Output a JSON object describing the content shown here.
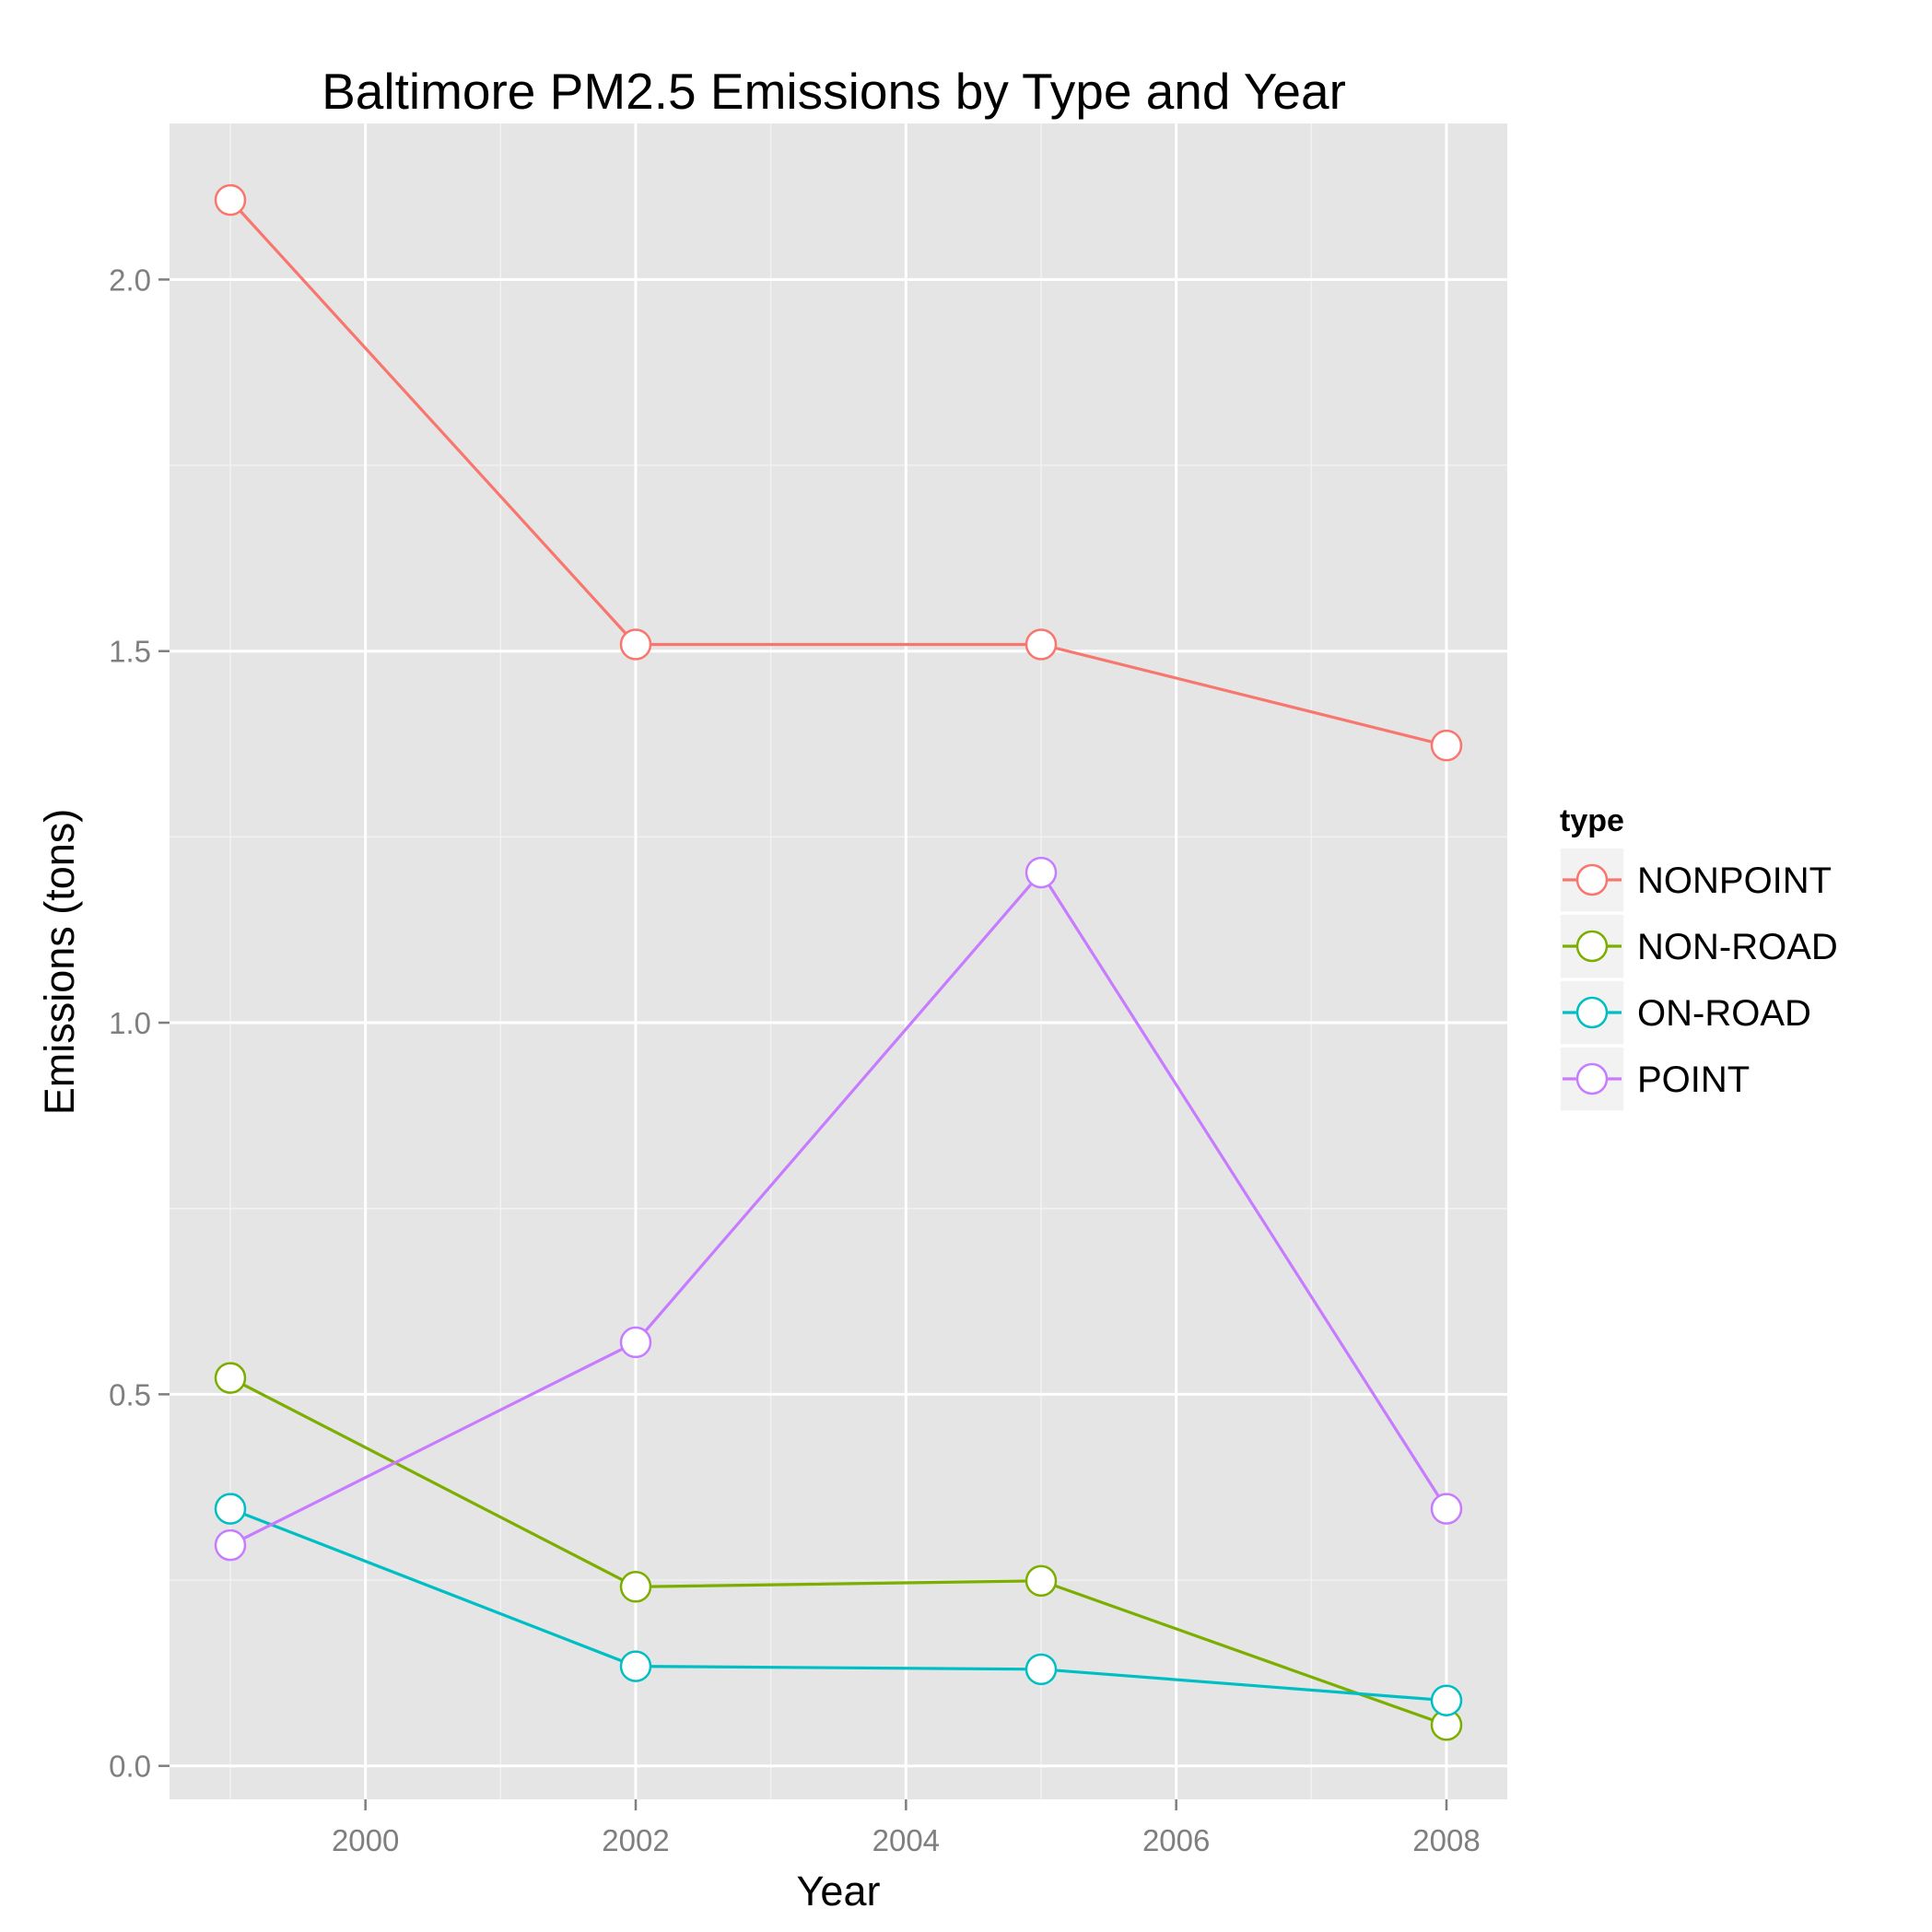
{
  "chart_data": {
    "type": "line",
    "title": "Baltimore PM2.5 Emissions by Type and Year",
    "xlabel": "Year",
    "ylabel": "Emissions (tons)",
    "xlim": [
      1998.55,
      2008.45
    ],
    "ylim": [
      -0.045,
      2.21
    ],
    "x_ticks": [
      2000,
      2002,
      2004,
      2006,
      2008
    ],
    "x_tick_labels": [
      "2000",
      "2002",
      "2004",
      "2006",
      "2008"
    ],
    "y_ticks": [
      0.0,
      0.5,
      1.0,
      1.5,
      2.0
    ],
    "y_tick_labels": [
      "0.0",
      "0.5",
      "1.0",
      "1.5",
      "2.0"
    ],
    "grid": true,
    "legend": {
      "title": "type",
      "position": "right"
    },
    "x": [
      1999,
      2002,
      2005,
      2008
    ],
    "series": [
      {
        "name": "NONPOINT",
        "color": "#F8766D",
        "values": [
          2.107,
          1.509,
          1.509,
          1.373
        ]
      },
      {
        "name": "NON-ROAD",
        "color": "#7CAE00",
        "values": [
          0.522,
          0.241,
          0.249,
          0.055
        ]
      },
      {
        "name": "ON-ROAD",
        "color": "#00BFC4",
        "values": [
          0.346,
          0.134,
          0.13,
          0.088
        ]
      },
      {
        "name": "POINT",
        "color": "#C77CFF",
        "values": [
          0.297,
          0.57,
          1.202,
          0.346
        ]
      }
    ]
  }
}
